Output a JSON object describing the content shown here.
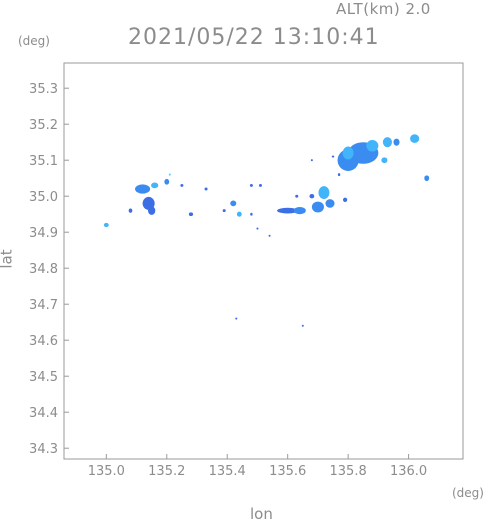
{
  "header": {
    "altitude_label": "ALT(km) 2.0",
    "timestamp": "2021/05/22 13:10:41"
  },
  "chart_data": {
    "type": "heatmap",
    "title": "2021/05/22 13:10:41",
    "xlabel": "lon",
    "ylabel": "lat",
    "x_unit": "(deg)",
    "y_unit": "(deg)",
    "xlim": [
      134.86,
      136.18
    ],
    "ylim": [
      34.27,
      35.37
    ],
    "x_ticks": [
      135.0,
      135.2,
      135.4,
      135.6,
      135.8,
      136.0
    ],
    "x_tick_labels": [
      "135.0",
      "135.2",
      "135.4",
      "135.6",
      "135.8",
      "136.0"
    ],
    "y_ticks": [
      34.3,
      34.4,
      34.5,
      34.6,
      34.7,
      34.8,
      34.9,
      35.0,
      35.1,
      35.2,
      35.3
    ],
    "y_tick_labels": [
      "34.3",
      "34.4",
      "34.5",
      "34.6",
      "34.7",
      "34.8",
      "34.9",
      "35.0",
      "35.1",
      "35.2",
      "35.3"
    ],
    "grid": false,
    "colors": {
      "weak": "#3c6ee6",
      "moderate": "#3a8cf0",
      "strong": "#41b4fa",
      "faint": "#5fc8ff",
      "axis": "#9a9a9a",
      "text": "#8c8c8c"
    },
    "cells": [
      {
        "x": 135.0,
        "y": 34.92,
        "rx": 0.008,
        "ry": 0.006,
        "level": "strong"
      },
      {
        "x": 135.08,
        "y": 34.96,
        "rx": 0.006,
        "ry": 0.006,
        "level": "weak"
      },
      {
        "x": 135.12,
        "y": 35.02,
        "rx": 0.025,
        "ry": 0.013,
        "level": "moderate"
      },
      {
        "x": 135.14,
        "y": 34.98,
        "rx": 0.02,
        "ry": 0.018,
        "level": "weak"
      },
      {
        "x": 135.16,
        "y": 35.03,
        "rx": 0.012,
        "ry": 0.008,
        "level": "strong"
      },
      {
        "x": 135.15,
        "y": 34.96,
        "rx": 0.012,
        "ry": 0.012,
        "level": "weak"
      },
      {
        "x": 135.2,
        "y": 35.04,
        "rx": 0.008,
        "ry": 0.008,
        "level": "moderate"
      },
      {
        "x": 135.21,
        "y": 35.06,
        "rx": 0.003,
        "ry": 0.003,
        "level": "faint"
      },
      {
        "x": 135.25,
        "y": 35.03,
        "rx": 0.005,
        "ry": 0.004,
        "level": "weak"
      },
      {
        "x": 135.28,
        "y": 34.95,
        "rx": 0.007,
        "ry": 0.005,
        "level": "weak"
      },
      {
        "x": 135.33,
        "y": 35.02,
        "rx": 0.005,
        "ry": 0.004,
        "level": "weak"
      },
      {
        "x": 135.39,
        "y": 34.96,
        "rx": 0.005,
        "ry": 0.004,
        "level": "weak"
      },
      {
        "x": 135.42,
        "y": 34.98,
        "rx": 0.01,
        "ry": 0.008,
        "level": "moderate"
      },
      {
        "x": 135.44,
        "y": 34.95,
        "rx": 0.008,
        "ry": 0.007,
        "level": "strong"
      },
      {
        "x": 135.48,
        "y": 35.03,
        "rx": 0.005,
        "ry": 0.004,
        "level": "weak"
      },
      {
        "x": 135.51,
        "y": 35.03,
        "rx": 0.005,
        "ry": 0.004,
        "level": "weak"
      },
      {
        "x": 135.48,
        "y": 34.95,
        "rx": 0.004,
        "ry": 0.004,
        "level": "weak"
      },
      {
        "x": 135.5,
        "y": 34.91,
        "rx": 0.003,
        "ry": 0.003,
        "level": "weak"
      },
      {
        "x": 135.54,
        "y": 34.89,
        "rx": 0.003,
        "ry": 0.003,
        "level": "weak"
      },
      {
        "x": 135.6,
        "y": 34.96,
        "rx": 0.035,
        "ry": 0.008,
        "level": "weak"
      },
      {
        "x": 135.64,
        "y": 34.96,
        "rx": 0.02,
        "ry": 0.01,
        "level": "moderate"
      },
      {
        "x": 135.63,
        "y": 35.0,
        "rx": 0.005,
        "ry": 0.004,
        "level": "weak"
      },
      {
        "x": 135.68,
        "y": 35.0,
        "rx": 0.008,
        "ry": 0.006,
        "level": "weak"
      },
      {
        "x": 135.7,
        "y": 34.97,
        "rx": 0.02,
        "ry": 0.015,
        "level": "moderate"
      },
      {
        "x": 135.72,
        "y": 35.01,
        "rx": 0.018,
        "ry": 0.018,
        "level": "strong"
      },
      {
        "x": 135.74,
        "y": 34.98,
        "rx": 0.015,
        "ry": 0.012,
        "level": "moderate"
      },
      {
        "x": 135.79,
        "y": 34.99,
        "rx": 0.007,
        "ry": 0.006,
        "level": "weak"
      },
      {
        "x": 135.77,
        "y": 35.06,
        "rx": 0.004,
        "ry": 0.004,
        "level": "weak"
      },
      {
        "x": 135.75,
        "y": 35.11,
        "rx": 0.004,
        "ry": 0.003,
        "level": "weak"
      },
      {
        "x": 135.68,
        "y": 35.1,
        "rx": 0.003,
        "ry": 0.003,
        "level": "weak"
      },
      {
        "x": 135.8,
        "y": 35.1,
        "rx": 0.035,
        "ry": 0.03,
        "level": "moderate"
      },
      {
        "x": 135.85,
        "y": 35.12,
        "rx": 0.05,
        "ry": 0.03,
        "level": "moderate"
      },
      {
        "x": 135.8,
        "y": 35.12,
        "rx": 0.018,
        "ry": 0.018,
        "level": "strong"
      },
      {
        "x": 135.88,
        "y": 35.14,
        "rx": 0.02,
        "ry": 0.016,
        "level": "strong"
      },
      {
        "x": 135.93,
        "y": 35.15,
        "rx": 0.015,
        "ry": 0.014,
        "level": "strong"
      },
      {
        "x": 135.96,
        "y": 35.15,
        "rx": 0.01,
        "ry": 0.01,
        "level": "moderate"
      },
      {
        "x": 135.92,
        "y": 35.1,
        "rx": 0.01,
        "ry": 0.008,
        "level": "strong"
      },
      {
        "x": 136.02,
        "y": 35.16,
        "rx": 0.015,
        "ry": 0.012,
        "level": "strong"
      },
      {
        "x": 136.06,
        "y": 35.05,
        "rx": 0.008,
        "ry": 0.008,
        "level": "moderate"
      },
      {
        "x": 135.43,
        "y": 34.66,
        "rx": 0.003,
        "ry": 0.003,
        "level": "weak"
      },
      {
        "x": 135.65,
        "y": 34.64,
        "rx": 0.003,
        "ry": 0.003,
        "level": "weak"
      }
    ]
  }
}
